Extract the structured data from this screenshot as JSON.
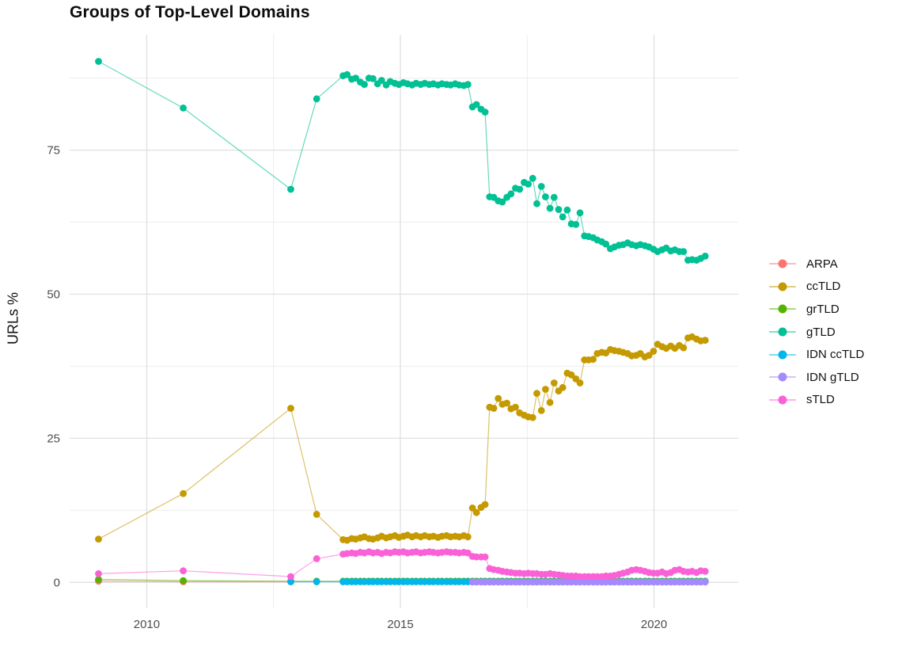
{
  "chart_data": {
    "type": "line",
    "title": "Groups of Top-Level Domains",
    "xlabel": "",
    "ylabel": "URLs %",
    "legend_position": "right",
    "grid": true,
    "background": "#ffffff",
    "grid_major_color": "#e2e2e2",
    "grid_minor_color": "#ededed",
    "axis_text_color": "#4d4d4d",
    "xlim": [
      2008.48,
      2021.66
    ],
    "ylim": [
      -4.5,
      95.0
    ],
    "x_ticks": [
      {
        "value": 2010,
        "label": "2010"
      },
      {
        "value": 2015,
        "label": "2015"
      },
      {
        "value": 2020,
        "label": "2020"
      }
    ],
    "y_ticks": [
      {
        "value": 0,
        "label": "0"
      },
      {
        "value": 25,
        "label": "25"
      },
      {
        "value": 50,
        "label": "50"
      },
      {
        "value": 75,
        "label": "75"
      }
    ],
    "x_minor_ticks": [
      2012.5,
      2017.5
    ],
    "y_minor_ticks": [
      12.5,
      37.5,
      62.5,
      87.5
    ],
    "x": [
      2009.05,
      2010.72,
      2012.84,
      2013.35,
      2013.87,
      2013.95,
      2014.04,
      2014.12,
      2014.21,
      2014.29,
      2014.38,
      2014.46,
      2014.55,
      2014.63,
      2014.72,
      2014.8,
      2014.89,
      2014.97,
      2015.06,
      2015.14,
      2015.23,
      2015.31,
      2015.4,
      2015.48,
      2015.57,
      2015.65,
      2015.74,
      2015.82,
      2015.91,
      2015.99,
      2016.08,
      2016.16,
      2016.25,
      2016.33,
      2016.42,
      2016.5,
      2016.59,
      2016.67,
      2016.76,
      2016.84,
      2016.93,
      2017.01,
      2017.1,
      2017.18,
      2017.27,
      2017.35,
      2017.44,
      2017.52,
      2017.61,
      2017.69,
      2017.78,
      2017.86,
      2017.95,
      2018.03,
      2018.12,
      2018.2,
      2018.29,
      2018.37,
      2018.46,
      2018.54,
      2018.63,
      2018.71,
      2018.8,
      2018.88,
      2018.97,
      2019.05,
      2019.14,
      2019.22,
      2019.31,
      2019.39,
      2019.48,
      2019.56,
      2019.65,
      2019.73,
      2019.82,
      2019.9,
      2019.99,
      2020.07,
      2020.16,
      2020.24,
      2020.33,
      2020.41,
      2020.5,
      2020.58,
      2020.67,
      2020.75,
      2020.84,
      2020.92,
      2021.01
    ],
    "series": [
      {
        "name": "ARPA",
        "color": "#F8766D",
        "values": [
          0.2,
          0.1,
          0.1
        ]
      },
      {
        "name": "ccTLD",
        "color": "#C49A00",
        "values": [
          7.5,
          15.4,
          30.2,
          11.8,
          7.4,
          7.3,
          7.6,
          7.5,
          7.7,
          7.9,
          7.6,
          7.5,
          7.7,
          8.0,
          7.7,
          7.9,
          8.1,
          7.8,
          8.0,
          8.2,
          7.9,
          8.1,
          7.9,
          8.1,
          7.9,
          8.0,
          7.8,
          8.0,
          8.1,
          7.9,
          8.0,
          7.9,
          8.1,
          7.9,
          12.9,
          12.1,
          13.0,
          13.5,
          30.4,
          30.2,
          31.9,
          30.9,
          31.1,
          30.1,
          30.4,
          29.4,
          29.0,
          28.7,
          28.6,
          32.8,
          29.8,
          33.5,
          31.2,
          34.6,
          33.2,
          33.8,
          36.3,
          36.0,
          35.3,
          34.6,
          38.6,
          38.6,
          38.7,
          39.7,
          39.9,
          39.8,
          40.4,
          40.2,
          40.1,
          39.9,
          39.7,
          39.3,
          39.4,
          39.7,
          39.1,
          39.4,
          40.1,
          41.3,
          40.9,
          40.6,
          41.0,
          40.6,
          41.1,
          40.7,
          42.4,
          42.6,
          42.2,
          41.9,
          42.0
        ]
      },
      {
        "name": "grTLD",
        "color": "#53B400",
        "values": [
          0.5,
          0.3,
          0.2,
          0.2,
          0.2,
          0.2,
          0.2,
          0.2,
          0.2,
          0.2,
          0.2,
          0.2,
          0.2,
          0.2,
          0.2,
          0.2,
          0.2,
          0.2,
          0.2,
          0.2,
          0.2,
          0.2,
          0.2,
          0.2,
          0.2,
          0.2,
          0.2,
          0.2,
          0.2,
          0.2,
          0.2,
          0.2,
          0.2,
          0.2,
          0.2,
          0.2,
          0.2,
          0.2,
          0.2,
          0.2,
          0.2,
          0.2,
          0.2,
          0.2,
          0.2,
          0.2,
          0.2,
          0.2,
          0.2,
          0.2,
          0.2,
          0.2,
          0.2,
          0.2,
          0.2,
          0.2,
          0.2,
          0.2,
          0.2,
          0.2,
          0.2,
          0.2,
          0.2,
          0.2,
          0.2,
          0.2,
          0.2,
          0.2,
          0.2,
          0.2,
          0.2,
          0.2,
          0.2,
          0.2,
          0.2,
          0.2,
          0.2,
          0.2,
          0.2,
          0.2,
          0.2,
          0.2,
          0.2,
          0.2,
          0.2,
          0.2,
          0.2,
          0.2,
          0.2
        ]
      },
      {
        "name": "gTLD",
        "color": "#00C094",
        "values": [
          90.4,
          82.3,
          68.2,
          83.9,
          87.9,
          88.1,
          87.3,
          87.5,
          86.8,
          86.4,
          87.5,
          87.4,
          86.5,
          87.1,
          86.3,
          86.9,
          86.6,
          86.4,
          86.7,
          86.5,
          86.3,
          86.6,
          86.4,
          86.6,
          86.4,
          86.5,
          86.3,
          86.5,
          86.4,
          86.3,
          86.5,
          86.3,
          86.2,
          86.4,
          82.5,
          82.9,
          82.1,
          81.6,
          66.9,
          66.8,
          66.2,
          66.0,
          66.8,
          67.4,
          68.4,
          68.2,
          69.4,
          69.1,
          70.1,
          65.7,
          68.7,
          66.9,
          64.9,
          66.8,
          64.7,
          63.4,
          64.6,
          62.2,
          62.1,
          64.1,
          60.1,
          60.0,
          59.8,
          59.4,
          59.1,
          58.7,
          57.9,
          58.2,
          58.5,
          58.6,
          58.9,
          58.6,
          58.4,
          58.6,
          58.4,
          58.2,
          57.8,
          57.4,
          57.7,
          58.0,
          57.5,
          57.7,
          57.4,
          57.4,
          55.9,
          56.0,
          55.9,
          56.2,
          56.6
        ]
      },
      {
        "name": "IDN ccTLD",
        "color": "#00B6EB",
        "values": [
          null,
          null,
          0.1,
          0.1,
          0.1,
          0.1,
          0.1,
          0.1,
          0.1,
          0.1,
          0.1,
          0.1,
          0.1,
          0.1,
          0.1,
          0.1,
          0.1,
          0.1,
          0.1,
          0.1,
          0.1,
          0.1,
          0.1,
          0.1,
          0.1,
          0.1,
          0.1,
          0.1,
          0.1,
          0.1,
          0.1,
          0.1,
          0.1,
          0.1,
          0.1,
          0.1,
          0.1,
          0.1,
          0.1,
          0.1,
          0.1,
          0.1,
          0.1,
          0.1,
          0.1,
          0.1,
          0.1,
          0.1,
          0.1,
          0.1,
          0.1,
          0.1,
          0.1,
          0.1,
          0.1,
          0.1,
          0.1,
          0.1,
          0.1,
          0.1,
          0.1,
          0.1,
          0.1,
          0.1,
          0.1,
          0.1,
          0.1,
          0.1,
          0.1,
          0.1,
          0.1,
          0.1,
          0.1,
          0.1,
          0.1,
          0.1,
          0.1,
          0.1,
          0.1,
          0.1,
          0.1,
          0.1,
          0.1,
          0.1,
          0.1,
          0.1,
          0.1,
          0.1,
          0.1
        ]
      },
      {
        "name": "IDN gTLD",
        "color": "#A58AFF",
        "values": [
          null,
          null,
          null,
          null,
          null,
          null,
          null,
          null,
          null,
          null,
          null,
          null,
          null,
          null,
          null,
          null,
          null,
          null,
          null,
          null,
          null,
          null,
          null,
          null,
          null,
          null,
          null,
          null,
          null,
          null,
          null,
          null,
          null,
          null,
          0.05,
          0.05,
          0.05,
          0.05,
          0.05,
          0.05,
          0.05,
          0.05,
          0.05,
          0.05,
          0.05,
          0.05,
          0.05,
          0.05,
          0.05,
          0.05,
          0.05,
          0.05,
          0.05,
          0.05,
          0.05,
          0.05,
          0.05,
          0.05,
          0.05,
          0.05,
          0.05,
          0.05,
          0.05,
          0.05,
          0.05,
          0.05,
          0.05,
          0.05,
          0.05,
          0.05,
          0.05,
          0.05,
          0.05,
          0.05,
          0.05,
          0.05,
          0.05,
          0.05,
          0.05,
          0.05,
          0.05,
          0.05,
          0.05,
          0.05,
          0.05,
          0.05,
          0.05,
          0.05,
          0.05
        ]
      },
      {
        "name": "sTLD",
        "color": "#FB61D7",
        "values": [
          1.5,
          2.0,
          1.0,
          4.1,
          4.9,
          5.0,
          5.1,
          5.0,
          5.2,
          5.1,
          5.3,
          5.1,
          5.2,
          5.0,
          5.2,
          5.1,
          5.3,
          5.2,
          5.3,
          5.1,
          5.2,
          5.3,
          5.1,
          5.2,
          5.3,
          5.2,
          5.1,
          5.2,
          5.3,
          5.2,
          5.2,
          5.1,
          5.2,
          5.1,
          4.5,
          4.4,
          4.4,
          4.4,
          2.4,
          2.2,
          2.1,
          1.9,
          1.8,
          1.7,
          1.6,
          1.6,
          1.5,
          1.6,
          1.5,
          1.5,
          1.4,
          1.4,
          1.5,
          1.4,
          1.3,
          1.2,
          1.1,
          1.1,
          1.1,
          1.0,
          1.0,
          1.0,
          1.0,
          1.0,
          1.0,
          1.1,
          1.1,
          1.2,
          1.4,
          1.6,
          1.8,
          2.1,
          2.2,
          2.1,
          1.9,
          1.7,
          1.6,
          1.6,
          1.8,
          1.5,
          1.7,
          2.1,
          2.2,
          1.9,
          1.8,
          1.9,
          1.7,
          2.0,
          1.9
        ]
      }
    ]
  }
}
